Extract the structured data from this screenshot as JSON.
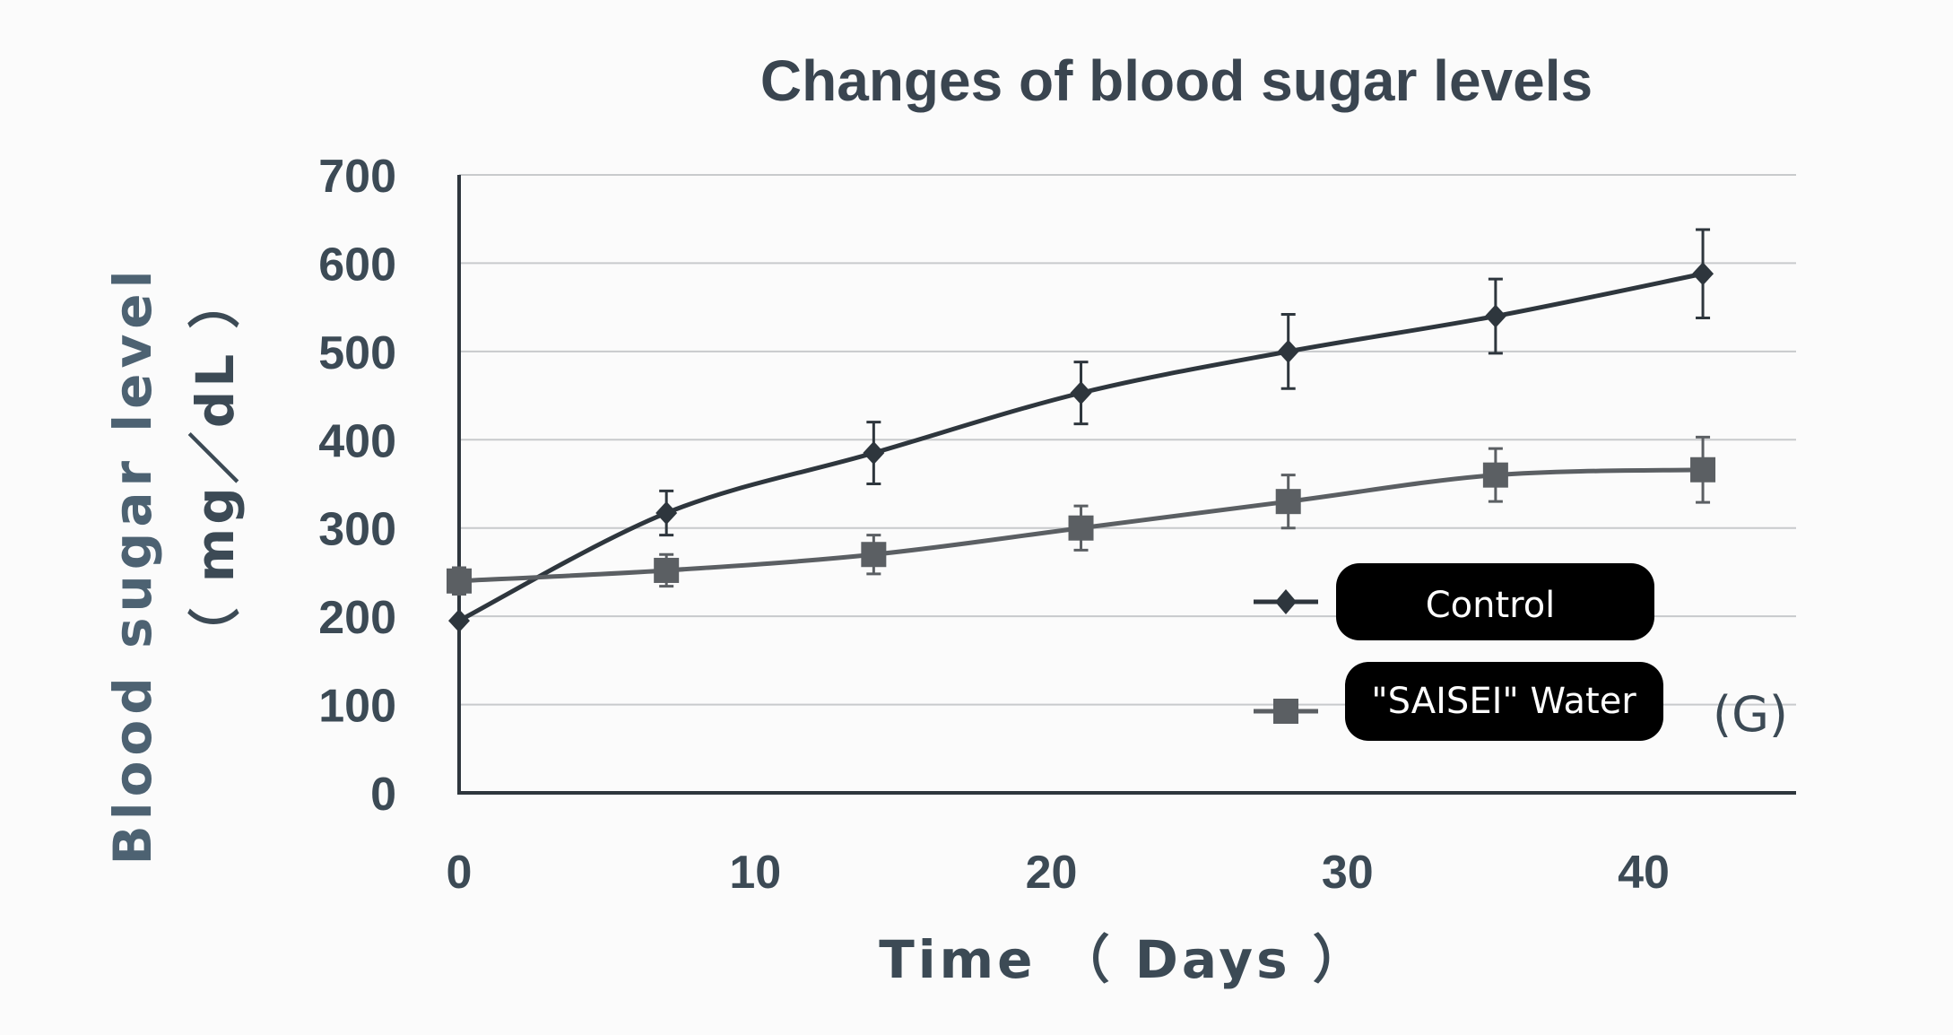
{
  "chart_data": {
    "type": "line",
    "title": "Changes of blood sugar levels",
    "xlabel": "Time （ Days ）",
    "ylabel": "Blood sugar level",
    "ylabel_unit": "（ mg／dL ）",
    "xlim": [
      0,
      45
    ],
    "ylim": [
      0,
      700
    ],
    "xticks": [
      "0",
      "10",
      "20",
      "30",
      "40"
    ],
    "yticks": [
      "0",
      "100",
      "200",
      "300",
      "400",
      "500",
      "600",
      "700"
    ],
    "grid": true,
    "legend_position": "center-right",
    "annotation": "(G)",
    "x": [
      0,
      7,
      14,
      21,
      28,
      35,
      42
    ],
    "series": [
      {
        "name": "Control",
        "marker": "diamond",
        "color": "#2e363d",
        "values": [
          195,
          317,
          385,
          453,
          500,
          540,
          588
        ],
        "errors": [
          0,
          25,
          35,
          35,
          42,
          42,
          50
        ]
      },
      {
        "name": "\"SAISEI\" Water",
        "marker": "square",
        "color": "#5b5f63",
        "values": [
          240,
          252,
          270,
          300,
          330,
          360,
          366
        ],
        "errors": [
          15,
          18,
          22,
          25,
          30,
          30,
          37
        ]
      }
    ]
  }
}
